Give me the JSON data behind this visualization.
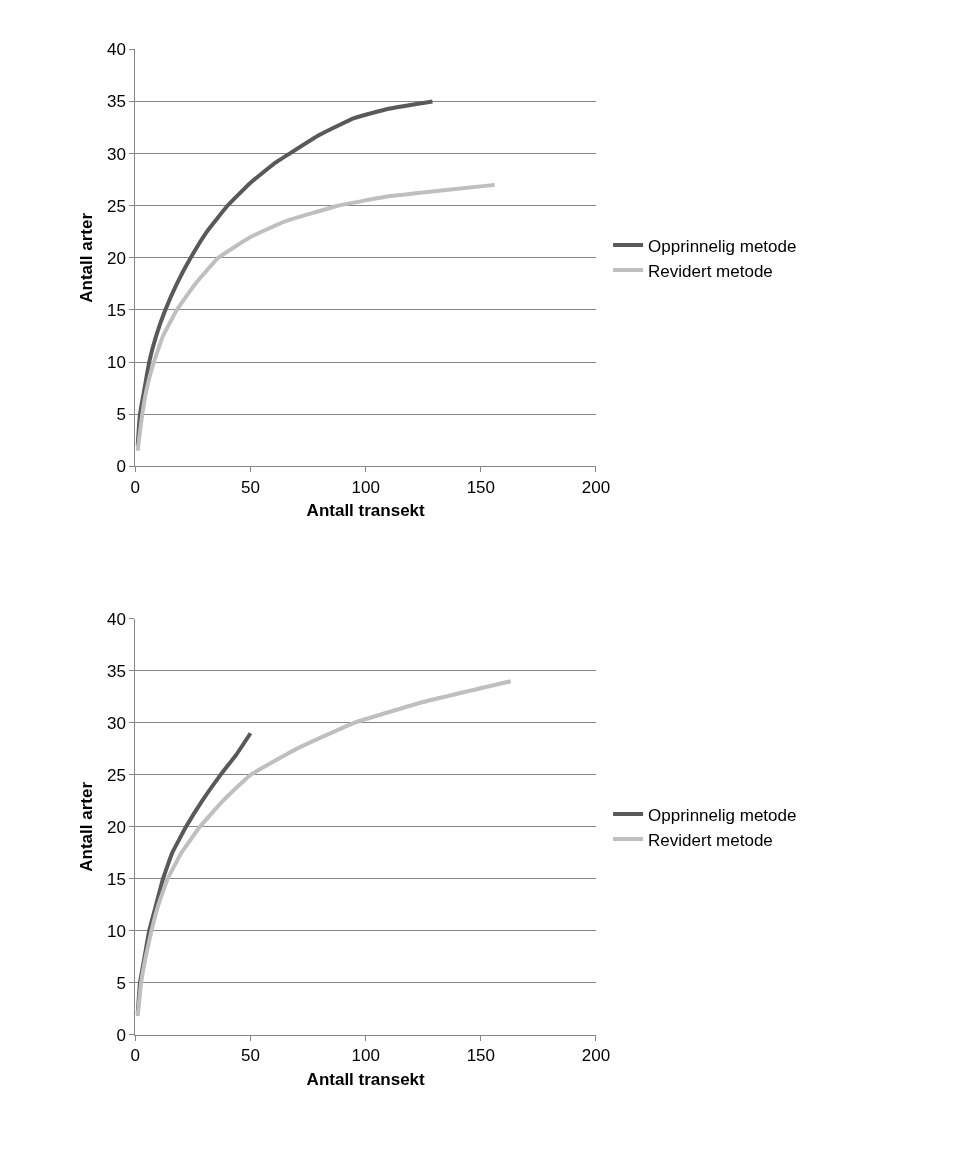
{
  "chart_data": [
    {
      "type": "line",
      "xlabel": "Antall transekt",
      "ylabel": "Antall arter",
      "xlim": [
        0,
        200
      ],
      "ylim": [
        0,
        40
      ],
      "xticks": [
        0,
        50,
        100,
        150,
        200
      ],
      "yticks": [
        0,
        5,
        10,
        15,
        20,
        25,
        30,
        35,
        40
      ],
      "grid": "y",
      "legend": "right",
      "marker": "none",
      "line_style": "solid",
      "series": [
        {
          "name": "Opprinnelig metode",
          "color": "#595959",
          "x": [
            1,
            2,
            4,
            6,
            9,
            13,
            18,
            24,
            31,
            40,
            50,
            60,
            67,
            80,
            95,
            110,
            129
          ],
          "values": [
            2,
            5,
            7.5,
            10,
            12.5,
            15,
            17.5,
            20,
            22.5,
            25,
            27.2,
            29,
            30,
            31.8,
            33.4,
            34.3,
            35
          ]
        },
        {
          "name": "Revidert metode",
          "color": "#bfbfbf",
          "x": [
            1,
            3,
            5,
            8,
            12,
            18,
            26,
            36,
            50,
            65,
            88,
            110,
            135,
            156
          ],
          "values": [
            1.5,
            5,
            7.5,
            10,
            12.5,
            15,
            17.5,
            20,
            22,
            23.5,
            25,
            25.9,
            26.5,
            27
          ]
        }
      ]
    },
    {
      "type": "line",
      "xlabel": "Antall transekt",
      "ylabel": "Antall arter",
      "xlim": [
        0,
        200
      ],
      "ylim": [
        0,
        40
      ],
      "xticks": [
        0,
        50,
        100,
        150,
        200
      ],
      "yticks": [
        0,
        5,
        10,
        15,
        20,
        25,
        30,
        35,
        40
      ],
      "grid": "y",
      "legend": "right",
      "marker": "none",
      "line_style": "solid",
      "series": [
        {
          "name": "Opprinnelig metode",
          "color": "#595959",
          "x": [
            1,
            2,
            4,
            6,
            9,
            12,
            16,
            22,
            29,
            37,
            44,
            50
          ],
          "values": [
            2,
            5,
            7.5,
            10,
            12.5,
            15,
            17.5,
            20,
            22.5,
            25,
            27,
            29
          ]
        },
        {
          "name": "Revidert metode",
          "color": "#bfbfbf",
          "x": [
            1,
            2.5,
            4.5,
            7,
            10,
            14,
            20,
            28,
            38,
            50,
            70,
            95,
            125,
            163
          ],
          "values": [
            1.8,
            5,
            7.5,
            10,
            12.5,
            15,
            17.5,
            20,
            22.5,
            25,
            27.5,
            30,
            32,
            34
          ]
        }
      ]
    }
  ]
}
